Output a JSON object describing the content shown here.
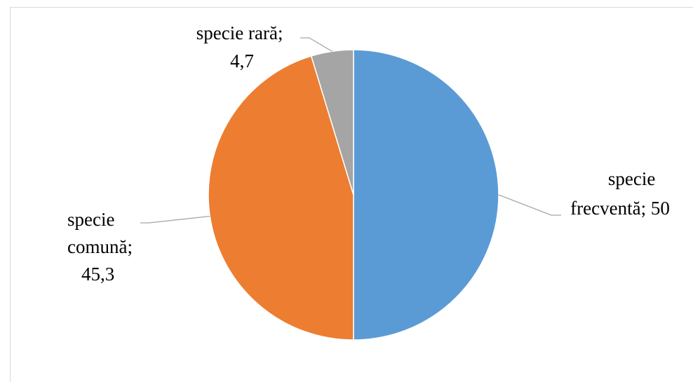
{
  "chart_data": {
    "type": "pie",
    "categories": [
      "specie frecventă",
      "specie comună",
      "specie rară"
    ],
    "values": [
      50,
      45.3,
      4.7
    ],
    "colors": [
      "#5b9bd5",
      "#ed7d31",
      "#a5a5a5"
    ],
    "title": "",
    "data_labels": [
      [
        "specie",
        "frecventă; 50"
      ],
      [
        "specie",
        "comună;",
        "45,3"
      ],
      [
        "specie rară;",
        "4,7"
      ]
    ],
    "start_angle_deg": 0,
    "direction": "clockwise",
    "legend": "none"
  }
}
